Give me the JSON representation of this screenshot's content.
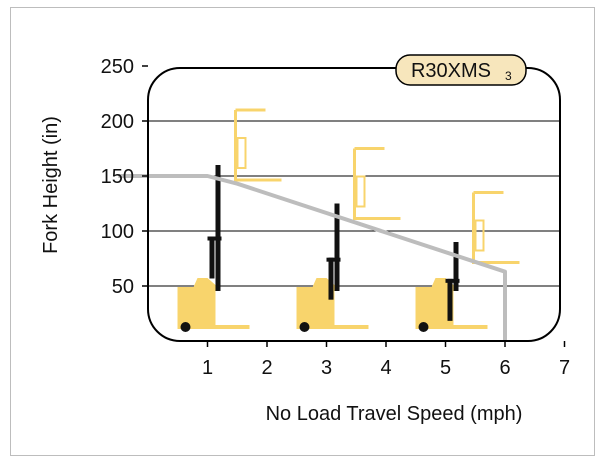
{
  "chart_data": {
    "type": "line",
    "badge": {
      "text": "R30XMS",
      "subscript": "3",
      "fill": "#f7e6bc"
    },
    "xlabel": "No Load Travel Speed (mph)",
    "ylabel": "Fork Height (in)",
    "xlim": [
      0,
      7
    ],
    "ylim": [
      0,
      250
    ],
    "x_ticks": [
      "1",
      "2",
      "3",
      "4",
      "5",
      "6",
      "7"
    ],
    "y_ticks": [
      "50",
      "100",
      "150",
      "200",
      "250"
    ],
    "grid": "horizontal",
    "series": [
      {
        "color": "#bdbdbd",
        "x": [
          -0.5,
          0.0,
          1.0,
          1.5,
          6.0,
          6.0
        ],
        "y": [
          150,
          150,
          150,
          143,
          63,
          0
        ]
      }
    ],
    "truck_icons": [
      {
        "x": 1.0,
        "mast_height": 160,
        "ghost_height": 210
      },
      {
        "x": 3.0,
        "mast_height": 125,
        "ghost_height": 175
      },
      {
        "x": 5.0,
        "mast_height": 90,
        "ghost_height": 135
      }
    ],
    "colors": {
      "truck_body": "#f8d46c",
      "mast": "#111111",
      "gridline": "#000000"
    }
  }
}
